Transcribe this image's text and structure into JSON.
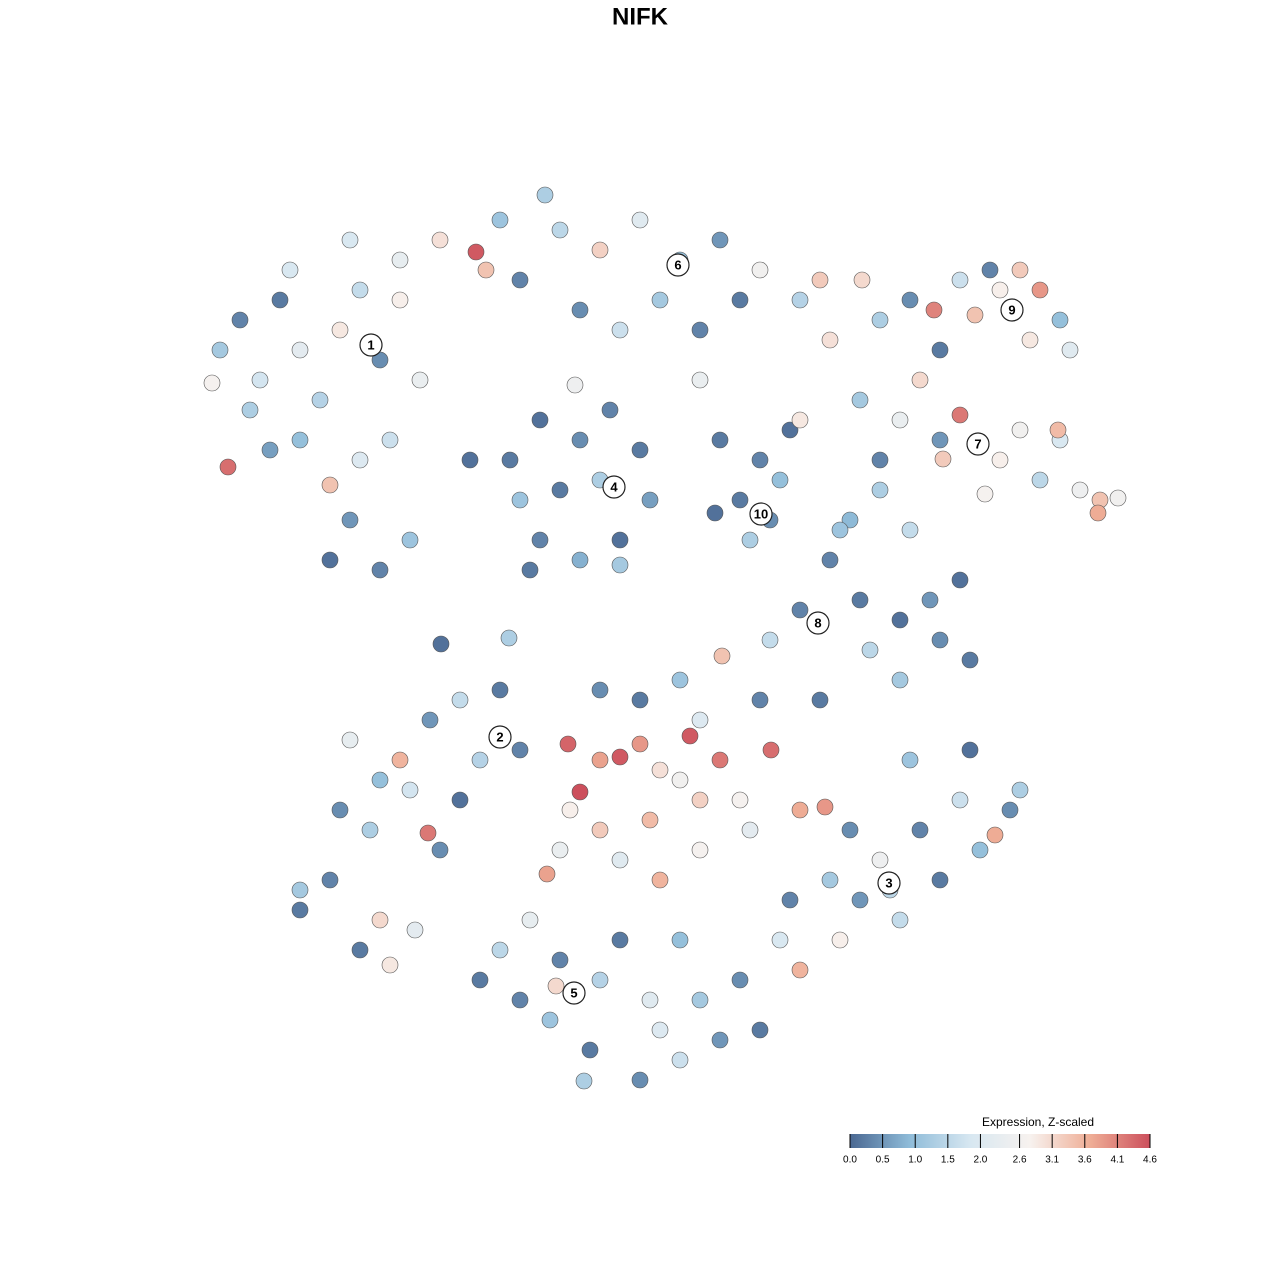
{
  "chart_data": {
    "type": "scatter",
    "title": "NIFK",
    "xlim": [
      0,
      128
    ],
    "ylim": [
      128,
      0
    ],
    "x": [
      22,
      24,
      26,
      28,
      30,
      32,
      34,
      36,
      38,
      30,
      33,
      35,
      33,
      38,
      41,
      39,
      42,
      27,
      22.8,
      21.2,
      25,
      36,
      40,
      29,
      35,
      40,
      44,
      47.6,
      50,
      52,
      56,
      60,
      64,
      68,
      72,
      76,
      80,
      82,
      74,
      66,
      58,
      62,
      70,
      54.5,
      48.6,
      83,
      70,
      51,
      54,
      58,
      61,
      64,
      65,
      62,
      58,
      54,
      52,
      56,
      60,
      61.5,
      53,
      62,
      47,
      57.5,
      72,
      76,
      79,
      77,
      74,
      78,
      75,
      71.5,
      80,
      86,
      90,
      94,
      96,
      100,
      104,
      108,
      110,
      109.8,
      106,
      102,
      92,
      88,
      85,
      91,
      94.3,
      98.5,
      111.8,
      105.8,
      88,
      91,
      93.4,
      96,
      97.5,
      100,
      102,
      104,
      106,
      107,
      99,
      94,
      103,
      86.2,
      83,
      86,
      90,
      94,
      97,
      96,
      90,
      87,
      84,
      80,
      77,
      93,
      88,
      30,
      33,
      36,
      39,
      41.5,
      38,
      34,
      37,
      41,
      42.8,
      40,
      43,
      46,
      50,
      52,
      35,
      38,
      44,
      46,
      48,
      50.9,
      44.1,
      30,
      56.8,
      58,
      60,
      62,
      64,
      66,
      69,
      72,
      74,
      77.1,
      70,
      68,
      65,
      60,
      57,
      56,
      62,
      66,
      70,
      75,
      80,
      82.5,
      54.7,
      72.2,
      76,
      64,
      60,
      68,
      82,
      70,
      79,
      83,
      86,
      90,
      94,
      98,
      101,
      102,
      96,
      92,
      88,
      85,
      80,
      78,
      84,
      99.5,
      91,
      97,
      89,
      50,
      52,
      55,
      59,
      64,
      68,
      72,
      76,
      70,
      65,
      60,
      56,
      62,
      68,
      74,
      58.4,
      53,
      55.6,
      48,
      66
    ],
    "y": [
      35,
      32,
      38,
      30,
      35,
      40,
      33,
      29,
      36,
      44,
      48.5,
      52,
      56,
      57,
      54,
      44,
      38,
      45,
      46.7,
      38.3,
      41,
      46,
      30,
      27,
      24,
      26,
      24,
      25.2,
      22,
      28,
      23,
      25,
      22,
      26,
      24,
      27,
      30,
      28,
      30,
      30,
      31,
      33,
      38,
      19.5,
      27,
      34,
      33,
      46,
      42,
      44,
      41,
      45,
      50,
      54,
      56,
      54,
      50,
      49,
      48,
      48.7,
      57,
      56.5,
      46,
      38.5,
      44,
      46,
      43,
      52,
      50,
      48,
      54,
      51.3,
      42,
      40,
      42,
      44,
      41.5,
      46,
      48,
      49,
      50,
      51.3,
      44,
      43,
      38,
      46,
      52,
      53,
      45.9,
      49.4,
      49.8,
      43,
      32,
      30,
      31,
      28,
      31.5,
      29,
      27,
      29,
      32,
      35,
      27,
      35,
      34,
      28,
      56,
      60,
      62,
      64,
      66,
      58,
      68,
      65,
      53,
      61,
      64,
      60,
      49,
      91,
      88,
      95,
      96.5,
      93,
      92,
      81,
      83,
      79,
      83.3,
      76,
      72,
      70,
      69,
      75,
      74,
      78,
      85,
      80,
      76,
      63.8,
      64.4,
      89,
      74.4,
      79.2,
      76,
      75.7,
      74.4,
      77,
      73.6,
      76,
      80,
      75,
      80,
      78,
      82,
      83,
      81,
      85,
      86,
      88,
      85,
      83,
      81,
      80.7,
      87.4,
      65.6,
      70,
      70,
      69,
      68,
      70,
      72,
      90,
      88,
      90,
      92,
      88,
      85,
      81,
      79,
      80,
      83,
      86,
      83,
      97,
      94,
      94,
      83.5,
      76,
      75,
      89,
      95,
      100,
      102,
      105,
      108,
      106,
      104,
      103,
      100,
      100,
      98,
      96,
      94,
      94,
      98,
      108.1,
      92,
      98.6,
      98,
      103
    ],
    "values": [
      1.2,
      0.3,
      1.8,
      0.2,
      2.2,
      1.4,
      2.9,
      1.6,
      0.4,
      1.0,
      3.4,
      0.5,
      0.1,
      0.3,
      1.1,
      1.7,
      2.4,
      0.6,
      4.3,
      2.7,
      1.3,
      2.0,
      2.8,
      1.9,
      1.9,
      2.3,
      3.0,
      4.5,
      1.1,
      0.3,
      1.5,
      3.2,
      2.1,
      1.0,
      0.5,
      2.6,
      1.4,
      3.3,
      0.2,
      1.2,
      0.4,
      1.7,
      2.4,
      1.3,
      3.4,
      3.0,
      0.3,
      0.2,
      0.1,
      0.4,
      0.3,
      0.2,
      0.6,
      0.1,
      0.8,
      0.3,
      1.1,
      0.2,
      1.3,
      0.5,
      0.2,
      1.2,
      0.1,
      2.5,
      0.2,
      0.3,
      0.1,
      0.4,
      0.2,
      1.0,
      1.3,
      0.1,
      2.9,
      1.2,
      2.4,
      0.5,
      4.2,
      2.8,
      1.5,
      2.5,
      3.4,
      3.7,
      1.9,
      2.6,
      3.1,
      0.3,
      0.9,
      1.6,
      3.3,
      2.7,
      2.6,
      3.5,
      1.3,
      0.4,
      4.1,
      1.7,
      3.4,
      2.8,
      3.3,
      3.9,
      1.0,
      2.1,
      0.3,
      0.2,
      2.9,
      3.1,
      0.3,
      0.2,
      0.1,
      0.4,
      0.2,
      0.1,
      1.2,
      1.5,
      1.1,
      0.3,
      1.6,
      0.5,
      1.3,
      0.2,
      0.3,
      0.2,
      2.9,
      2.2,
      3.1,
      0.4,
      1.3,
      1.8,
      4.2,
      3.6,
      0.5,
      1.6,
      0.2,
      0.3,
      2.3,
      1.0,
      0.4,
      0.1,
      1.4,
      1.3,
      0.1,
      1.2,
      4.4,
      4.6,
      3.8,
      4.5,
      3.9,
      3.0,
      4.5,
      4.2,
      2.7,
      4.3,
      3.2,
      2.6,
      3.5,
      3.3,
      2.8,
      2.4,
      2.1,
      3.6,
      2.7,
      2.2,
      3.7,
      3.9,
      3.8,
      3.4,
      0.3,
      0.2,
      0.4,
      1.1,
      0.2,
      2.0,
      0.3,
      1.2,
      0.5,
      1.6,
      0.2,
      1.0,
      0.4,
      1.3,
      1.7,
      0.3,
      2.5,
      0.4,
      3.6,
      1.9,
      2.8,
      3.7,
      1.1,
      0.1,
      1.5,
      1.5,
      0.3,
      1.1,
      0.2,
      0.4,
      1.7,
      0.5,
      0.2,
      1.2,
      2.1,
      1.4,
      0.3,
      0.2,
      1.0,
      0.4,
      1.3,
      2.3,
      3.1,
      0.2,
      2.0
    ],
    "cluster_labels": [
      {
        "text": "1",
        "x": 37.1,
        "y": 34.5
      },
      {
        "text": "6",
        "x": 67.8,
        "y": 26.5
      },
      {
        "text": "9",
        "x": 101.2,
        "y": 31
      },
      {
        "text": "7",
        "x": 97.8,
        "y": 44.4
      },
      {
        "text": "4",
        "x": 61.4,
        "y": 48.7
      },
      {
        "text": "10",
        "x": 76.1,
        "y": 51.4
      },
      {
        "text": "8",
        "x": 81.8,
        "y": 62.3
      },
      {
        "text": "2",
        "x": 50,
        "y": 73.7
      },
      {
        "text": "3",
        "x": 88.9,
        "y": 88.3
      },
      {
        "text": "5",
        "x": 57.4,
        "y": 99.3
      }
    ],
    "colorbar": {
      "title": "Expression, Z-scaled",
      "lim": [
        0,
        4.6
      ],
      "ticks": [
        {
          "value": 0,
          "label": "0.0"
        },
        0.5,
        {
          "value": 1,
          "label": "1.0"
        },
        1.5,
        {
          "value": 2,
          "label": "2.0"
        },
        2.6,
        3.1,
        3.6,
        4.1,
        4.6
      ],
      "colors": [
        "#4a6892",
        "#8fbcd9",
        "#d7e7f1",
        "#f7f2ef",
        "#efae96",
        "#cc4f5c"
      ]
    }
  }
}
